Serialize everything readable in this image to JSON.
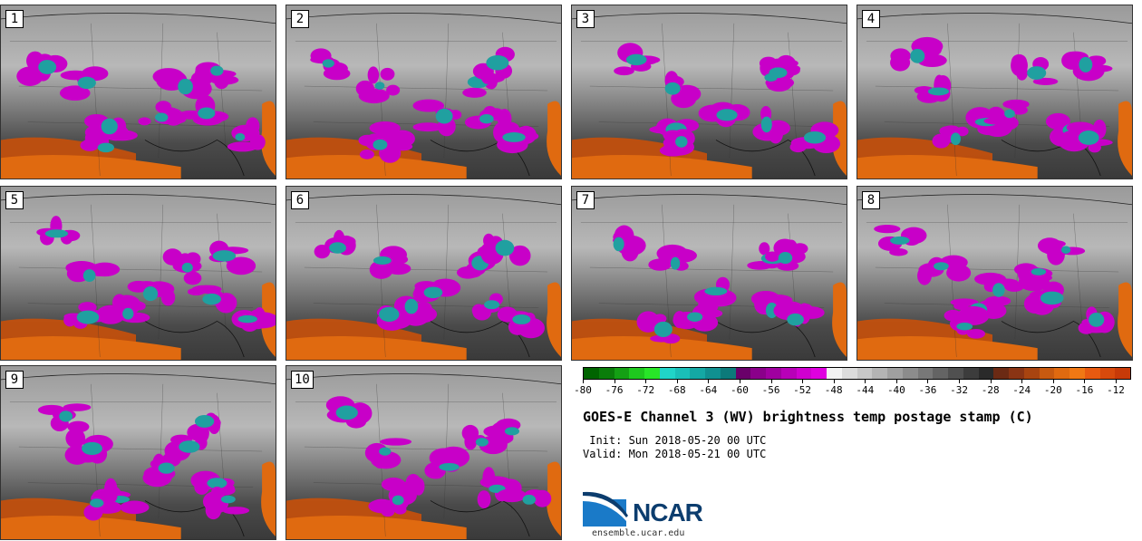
{
  "panels": [
    {
      "label": "1"
    },
    {
      "label": "2"
    },
    {
      "label": "3"
    },
    {
      "label": "4"
    },
    {
      "label": "5"
    },
    {
      "label": "6"
    },
    {
      "label": "7"
    },
    {
      "label": "8"
    },
    {
      "label": "9"
    },
    {
      "label": "10"
    }
  ],
  "colorbar": {
    "ticks": [
      "-80",
      "-76",
      "-72",
      "-68",
      "-64",
      "-60",
      "-56",
      "-52",
      "-48",
      "-44",
      "-40",
      "-36",
      "-32",
      "-28",
      "-24",
      "-20",
      "-16",
      "-12"
    ],
    "colors": [
      "#006400",
      "#0a7d0a",
      "#14a014",
      "#1ec81e",
      "#28e628",
      "#20d4c8",
      "#1abfb8",
      "#14a8a4",
      "#109090",
      "#0c7a7a",
      "#6a006a",
      "#8a008a",
      "#a000a0",
      "#b800b8",
      "#d000d0",
      "#e000e0",
      "#f2f2f2",
      "#dcdcdc",
      "#c8c8c8",
      "#b4b4b4",
      "#a0a0a0",
      "#8c8c8c",
      "#787878",
      "#646464",
      "#505050",
      "#3c3c3c",
      "#2a2a2a",
      "#6b2a14",
      "#8a3414",
      "#a84410",
      "#c85a10",
      "#e06a10",
      "#f07814",
      "#e85a10",
      "#d84a0c",
      "#c83a08"
    ]
  },
  "title": "GOES-E Channel 3 (WV) brightness temp postage stamp (C)",
  "init_line": " Init: Sun 2018-05-20 00 UTC",
  "valid_line": "Valid: Mon 2018-05-21 00 UTC",
  "logo_text": "NCAR",
  "url": "ensemble.ucar.edu",
  "colors": {
    "magenta": "#c800c8",
    "teal": "#20a0a0",
    "orange": "#e0640a",
    "grey": "#8c8c8c"
  }
}
